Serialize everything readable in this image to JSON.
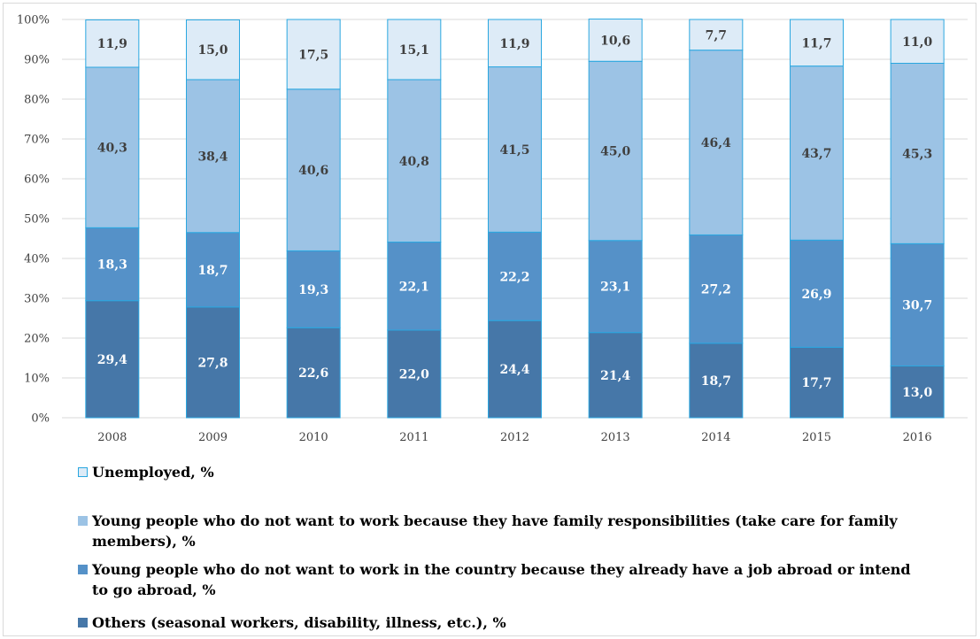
{
  "chart_data": {
    "type": "bar",
    "stacked": true,
    "title": "",
    "xlabel": "",
    "ylabel": "",
    "ylim": [
      0,
      100
    ],
    "y_ticks": [
      "0%",
      "10%",
      "20%",
      "30%",
      "40%",
      "50%",
      "60%",
      "70%",
      "80%",
      "90%",
      "100%"
    ],
    "grid": true,
    "legend_position": "bottom",
    "categories": [
      "2008",
      "2009",
      "2010",
      "2011",
      "2012",
      "2013",
      "2014",
      "2015",
      "2016"
    ],
    "series": [
      {
        "name": "Others (seasonal workers, disability, illness, etc.), %",
        "color": "#4677a8",
        "values": [
          29.4,
          27.8,
          22.6,
          22.0,
          24.4,
          21.4,
          18.7,
          17.7,
          13.0
        ],
        "labels": [
          "29,4",
          "27,8",
          "22,6",
          "22,0",
          "24,4",
          "21,4",
          "18,7",
          "17,7",
          "13,0"
        ]
      },
      {
        "name": "Young people who do not want to work in the country because they already have a job abroad or intend to go abroad, %",
        "color": "#5591c8",
        "values": [
          18.3,
          18.7,
          19.3,
          22.1,
          22.2,
          23.1,
          27.2,
          26.9,
          30.7
        ],
        "labels": [
          "18,3",
          "18,7",
          "19,3",
          "22,1",
          "22,2",
          "23,1",
          "27,2",
          "26,9",
          "30,7"
        ]
      },
      {
        "name": "Young people who do not want to work because they have family responsibilities (take care for family members), %",
        "color": "#9cc3e5",
        "values": [
          40.3,
          38.4,
          40.6,
          40.8,
          41.5,
          45.0,
          46.4,
          43.7,
          45.3
        ],
        "labels": [
          "40,3",
          "38,4",
          "40,6",
          "40,8",
          "41,5",
          "45,0",
          "46,4",
          "43,7",
          "45,3"
        ]
      },
      {
        "name": "Unemployed, %",
        "color": "#ddebf7",
        "values": [
          11.9,
          15.0,
          17.5,
          15.1,
          11.9,
          10.6,
          7.7,
          11.7,
          11.0
        ],
        "labels": [
          "11,9",
          "15,0",
          "17,5",
          "15,1",
          "11,9",
          "10,6",
          "7,7",
          "11,7",
          "11,0"
        ]
      }
    ],
    "legend_order": [
      3,
      2,
      1,
      0
    ]
  }
}
